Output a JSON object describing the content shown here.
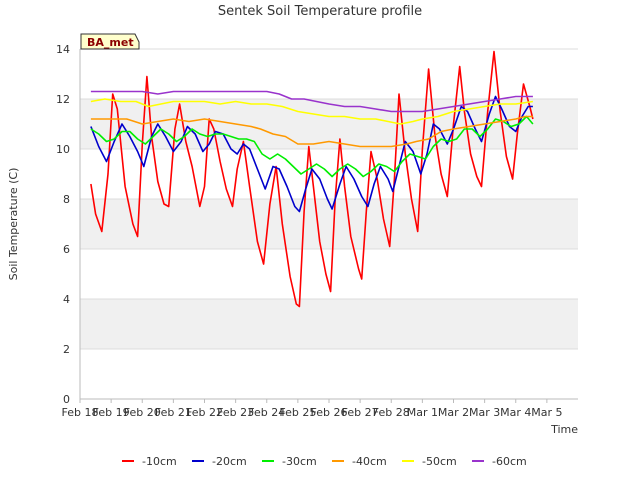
{
  "chart_data": {
    "type": "line",
    "title": "Sentek Soil Temperature profile",
    "xlabel": "Time",
    "ylabel": "Soil Temperature (C)",
    "badge": "BA_met",
    "ylim": [
      0,
      14
    ],
    "yticks": [
      0,
      2,
      4,
      6,
      8,
      10,
      12,
      14
    ],
    "xlim": [
      0,
      16
    ],
    "xticks": [
      {
        "x": 0,
        "label": "Feb 18"
      },
      {
        "x": 1,
        "label": "Feb 19"
      },
      {
        "x": 2,
        "label": "Feb 20"
      },
      {
        "x": 3,
        "label": "Feb 21"
      },
      {
        "x": 4,
        "label": "Feb 22"
      },
      {
        "x": 5,
        "label": "Feb 23"
      },
      {
        "x": 6,
        "label": "Feb 24"
      },
      {
        "x": 7,
        "label": "Feb 25"
      },
      {
        "x": 8,
        "label": "Feb 26"
      },
      {
        "x": 9,
        "label": "Feb 27"
      },
      {
        "x": 10,
        "label": "Feb 28"
      },
      {
        "x": 11,
        "label": "Mar 1"
      },
      {
        "x": 12,
        "label": "Mar 2"
      },
      {
        "x": 13,
        "label": "Mar 3"
      },
      {
        "x": 14,
        "label": "Mar 4"
      },
      {
        "x": 15,
        "label": "Mar 5"
      }
    ],
    "grid": true,
    "legend_position": "bottom",
    "series": [
      {
        "name": "-10cm",
        "color": "#ff0000",
        "points": [
          [
            0.35,
            8.6
          ],
          [
            0.5,
            7.4
          ],
          [
            0.7,
            6.7
          ],
          [
            0.9,
            9.0
          ],
          [
            1.05,
            12.2
          ],
          [
            1.2,
            11.6
          ],
          [
            1.45,
            8.5
          ],
          [
            1.7,
            7.0
          ],
          [
            1.85,
            6.5
          ],
          [
            2.0,
            10.2
          ],
          [
            2.15,
            12.9
          ],
          [
            2.3,
            10.5
          ],
          [
            2.5,
            8.7
          ],
          [
            2.7,
            7.8
          ],
          [
            2.85,
            7.7
          ],
          [
            3.05,
            10.8
          ],
          [
            3.2,
            11.8
          ],
          [
            3.4,
            10.3
          ],
          [
            3.6,
            9.3
          ],
          [
            3.85,
            7.7
          ],
          [
            4.0,
            8.5
          ],
          [
            4.15,
            11.2
          ],
          [
            4.3,
            10.8
          ],
          [
            4.5,
            9.5
          ],
          [
            4.7,
            8.4
          ],
          [
            4.9,
            7.7
          ],
          [
            5.05,
            9.2
          ],
          [
            5.25,
            10.3
          ],
          [
            5.45,
            8.5
          ],
          [
            5.7,
            6.3
          ],
          [
            5.9,
            5.4
          ],
          [
            6.1,
            7.8
          ],
          [
            6.3,
            9.3
          ],
          [
            6.5,
            7.0
          ],
          [
            6.75,
            4.9
          ],
          [
            6.95,
            3.8
          ],
          [
            7.05,
            3.7
          ],
          [
            7.2,
            7.5
          ],
          [
            7.35,
            10.1
          ],
          [
            7.5,
            8.5
          ],
          [
            7.7,
            6.3
          ],
          [
            7.9,
            5.0
          ],
          [
            8.05,
            4.3
          ],
          [
            8.2,
            8.0
          ],
          [
            8.35,
            10.4
          ],
          [
            8.5,
            8.5
          ],
          [
            8.7,
            6.5
          ],
          [
            8.95,
            5.2
          ],
          [
            9.05,
            4.8
          ],
          [
            9.2,
            7.5
          ],
          [
            9.35,
            9.9
          ],
          [
            9.55,
            8.8
          ],
          [
            9.75,
            7.2
          ],
          [
            9.95,
            6.1
          ],
          [
            10.1,
            8.8
          ],
          [
            10.25,
            12.2
          ],
          [
            10.45,
            9.8
          ],
          [
            10.65,
            8.0
          ],
          [
            10.85,
            6.7
          ],
          [
            11.0,
            10.0
          ],
          [
            11.2,
            13.2
          ],
          [
            11.4,
            10.6
          ],
          [
            11.6,
            9.0
          ],
          [
            11.8,
            8.1
          ],
          [
            12.0,
            11.0
          ],
          [
            12.2,
            13.3
          ],
          [
            12.35,
            11.5
          ],
          [
            12.55,
            9.8
          ],
          [
            12.75,
            8.9
          ],
          [
            12.9,
            8.5
          ],
          [
            13.1,
            11.5
          ],
          [
            13.3,
            13.9
          ],
          [
            13.5,
            11.5
          ],
          [
            13.7,
            9.7
          ],
          [
            13.9,
            8.8
          ],
          [
            14.05,
            10.6
          ],
          [
            14.25,
            12.6
          ],
          [
            14.45,
            11.7
          ],
          [
            14.55,
            11.2
          ]
        ]
      },
      {
        "name": "-20cm",
        "color": "#0000cc",
        "points": [
          [
            0.35,
            10.9
          ],
          [
            0.6,
            10.1
          ],
          [
            0.85,
            9.5
          ],
          [
            1.1,
            10.3
          ],
          [
            1.35,
            11.0
          ],
          [
            1.6,
            10.5
          ],
          [
            1.85,
            9.9
          ],
          [
            2.05,
            9.3
          ],
          [
            2.3,
            10.5
          ],
          [
            2.5,
            11.0
          ],
          [
            2.75,
            10.5
          ],
          [
            3.0,
            9.9
          ],
          [
            3.25,
            10.3
          ],
          [
            3.45,
            10.9
          ],
          [
            3.7,
            10.6
          ],
          [
            3.95,
            9.9
          ],
          [
            4.15,
            10.2
          ],
          [
            4.35,
            10.7
          ],
          [
            4.6,
            10.6
          ],
          [
            4.85,
            10.0
          ],
          [
            5.05,
            9.8
          ],
          [
            5.25,
            10.2
          ],
          [
            5.45,
            10.0
          ],
          [
            5.7,
            9.2
          ],
          [
            5.95,
            8.4
          ],
          [
            6.2,
            9.3
          ],
          [
            6.4,
            9.2
          ],
          [
            6.65,
            8.5
          ],
          [
            6.9,
            7.7
          ],
          [
            7.05,
            7.5
          ],
          [
            7.25,
            8.4
          ],
          [
            7.45,
            9.2
          ],
          [
            7.7,
            8.8
          ],
          [
            7.95,
            8.0
          ],
          [
            8.1,
            7.6
          ],
          [
            8.35,
            8.6
          ],
          [
            8.55,
            9.3
          ],
          [
            8.8,
            8.8
          ],
          [
            9.05,
            8.1
          ],
          [
            9.25,
            7.7
          ],
          [
            9.45,
            8.6
          ],
          [
            9.65,
            9.3
          ],
          [
            9.9,
            8.8
          ],
          [
            10.05,
            8.3
          ],
          [
            10.25,
            9.3
          ],
          [
            10.45,
            10.3
          ],
          [
            10.7,
            9.9
          ],
          [
            10.95,
            9.0
          ],
          [
            11.15,
            9.8
          ],
          [
            11.35,
            11.0
          ],
          [
            11.55,
            10.8
          ],
          [
            11.8,
            10.2
          ],
          [
            12.0,
            10.8
          ],
          [
            12.25,
            11.7
          ],
          [
            12.45,
            11.5
          ],
          [
            12.7,
            10.8
          ],
          [
            12.9,
            10.3
          ],
          [
            13.15,
            11.4
          ],
          [
            13.35,
            12.1
          ],
          [
            13.55,
            11.6
          ],
          [
            13.8,
            10.9
          ],
          [
            14.0,
            10.7
          ],
          [
            14.2,
            11.3
          ],
          [
            14.4,
            11.7
          ],
          [
            14.55,
            11.7
          ]
        ]
      },
      {
        "name": "-30cm",
        "color": "#00ee00",
        "points": [
          [
            0.35,
            10.8
          ],
          [
            0.6,
            10.6
          ],
          [
            0.85,
            10.3
          ],
          [
            1.1,
            10.4
          ],
          [
            1.35,
            10.7
          ],
          [
            1.6,
            10.7
          ],
          [
            1.85,
            10.4
          ],
          [
            2.1,
            10.2
          ],
          [
            2.35,
            10.5
          ],
          [
            2.6,
            10.8
          ],
          [
            2.85,
            10.6
          ],
          [
            3.1,
            10.3
          ],
          [
            3.35,
            10.5
          ],
          [
            3.6,
            10.8
          ],
          [
            3.85,
            10.6
          ],
          [
            4.1,
            10.5
          ],
          [
            4.35,
            10.6
          ],
          [
            4.6,
            10.6
          ],
          [
            4.85,
            10.5
          ],
          [
            5.1,
            10.4
          ],
          [
            5.35,
            10.4
          ],
          [
            5.6,
            10.3
          ],
          [
            5.85,
            9.8
          ],
          [
            6.1,
            9.6
          ],
          [
            6.35,
            9.8
          ],
          [
            6.6,
            9.6
          ],
          [
            6.85,
            9.3
          ],
          [
            7.1,
            9.0
          ],
          [
            7.35,
            9.2
          ],
          [
            7.6,
            9.4
          ],
          [
            7.85,
            9.2
          ],
          [
            8.1,
            8.9
          ],
          [
            8.35,
            9.2
          ],
          [
            8.6,
            9.4
          ],
          [
            8.85,
            9.2
          ],
          [
            9.1,
            8.9
          ],
          [
            9.35,
            9.1
          ],
          [
            9.6,
            9.4
          ],
          [
            9.85,
            9.3
          ],
          [
            10.1,
            9.1
          ],
          [
            10.35,
            9.5
          ],
          [
            10.6,
            9.8
          ],
          [
            10.85,
            9.7
          ],
          [
            11.1,
            9.6
          ],
          [
            11.35,
            10.1
          ],
          [
            11.6,
            10.4
          ],
          [
            11.85,
            10.3
          ],
          [
            12.1,
            10.4
          ],
          [
            12.35,
            10.8
          ],
          [
            12.6,
            10.8
          ],
          [
            12.85,
            10.5
          ],
          [
            13.1,
            10.8
          ],
          [
            13.35,
            11.2
          ],
          [
            13.6,
            11.1
          ],
          [
            13.85,
            10.9
          ],
          [
            14.1,
            11.0
          ],
          [
            14.35,
            11.3
          ],
          [
            14.55,
            11.0
          ]
        ]
      },
      {
        "name": "-40cm",
        "color": "#ff9900",
        "points": [
          [
            0.35,
            11.2
          ],
          [
            1.0,
            11.2
          ],
          [
            1.5,
            11.2
          ],
          [
            2.0,
            11.0
          ],
          [
            2.5,
            11.1
          ],
          [
            3.0,
            11.2
          ],
          [
            3.5,
            11.1
          ],
          [
            4.0,
            11.2
          ],
          [
            4.5,
            11.1
          ],
          [
            5.0,
            11.0
          ],
          [
            5.5,
            10.9
          ],
          [
            5.8,
            10.8
          ],
          [
            6.2,
            10.6
          ],
          [
            6.6,
            10.5
          ],
          [
            7.0,
            10.2
          ],
          [
            7.5,
            10.2
          ],
          [
            8.0,
            10.3
          ],
          [
            8.5,
            10.2
          ],
          [
            9.0,
            10.1
          ],
          [
            9.5,
            10.1
          ],
          [
            10.0,
            10.1
          ],
          [
            10.5,
            10.2
          ],
          [
            10.8,
            10.3
          ],
          [
            11.2,
            10.4
          ],
          [
            11.6,
            10.7
          ],
          [
            12.0,
            10.8
          ],
          [
            12.5,
            10.9
          ],
          [
            13.0,
            11.0
          ],
          [
            13.5,
            11.1
          ],
          [
            14.0,
            11.2
          ],
          [
            14.3,
            11.3
          ],
          [
            14.55,
            11.3
          ]
        ]
      },
      {
        "name": "-50cm",
        "color": "#ffff00",
        "points": [
          [
            0.35,
            11.9
          ],
          [
            0.8,
            12.0
          ],
          [
            1.3,
            11.9
          ],
          [
            1.8,
            11.9
          ],
          [
            2.2,
            11.7
          ],
          [
            2.6,
            11.8
          ],
          [
            3.0,
            11.9
          ],
          [
            3.5,
            11.9
          ],
          [
            4.0,
            11.9
          ],
          [
            4.5,
            11.8
          ],
          [
            5.0,
            11.9
          ],
          [
            5.5,
            11.8
          ],
          [
            6.0,
            11.8
          ],
          [
            6.5,
            11.7
          ],
          [
            7.0,
            11.5
          ],
          [
            7.5,
            11.4
          ],
          [
            8.0,
            11.3
          ],
          [
            8.5,
            11.3
          ],
          [
            9.0,
            11.2
          ],
          [
            9.5,
            11.2
          ],
          [
            9.9,
            11.1
          ],
          [
            10.3,
            11.0
          ],
          [
            10.7,
            11.1
          ],
          [
            11.0,
            11.2
          ],
          [
            11.5,
            11.3
          ],
          [
            12.0,
            11.5
          ],
          [
            12.5,
            11.6
          ],
          [
            13.0,
            11.7
          ],
          [
            13.5,
            11.8
          ],
          [
            14.0,
            11.8
          ],
          [
            14.55,
            11.9
          ]
        ]
      },
      {
        "name": "-60cm",
        "color": "#9933cc",
        "points": [
          [
            0.35,
            12.3
          ],
          [
            1.0,
            12.3
          ],
          [
            1.5,
            12.3
          ],
          [
            2.0,
            12.3
          ],
          [
            2.5,
            12.2
          ],
          [
            3.0,
            12.3
          ],
          [
            3.5,
            12.3
          ],
          [
            4.0,
            12.3
          ],
          [
            4.5,
            12.3
          ],
          [
            5.0,
            12.3
          ],
          [
            5.5,
            12.3
          ],
          [
            6.0,
            12.3
          ],
          [
            6.4,
            12.2
          ],
          [
            6.8,
            12.0
          ],
          [
            7.2,
            12.0
          ],
          [
            7.6,
            11.9
          ],
          [
            8.0,
            11.8
          ],
          [
            8.5,
            11.7
          ],
          [
            9.0,
            11.7
          ],
          [
            9.5,
            11.6
          ],
          [
            10.0,
            11.5
          ],
          [
            10.5,
            11.5
          ],
          [
            11.0,
            11.5
          ],
          [
            11.5,
            11.6
          ],
          [
            12.0,
            11.7
          ],
          [
            12.5,
            11.8
          ],
          [
            13.0,
            11.9
          ],
          [
            13.5,
            12.0
          ],
          [
            14.0,
            12.1
          ],
          [
            14.55,
            12.1
          ]
        ]
      }
    ]
  }
}
